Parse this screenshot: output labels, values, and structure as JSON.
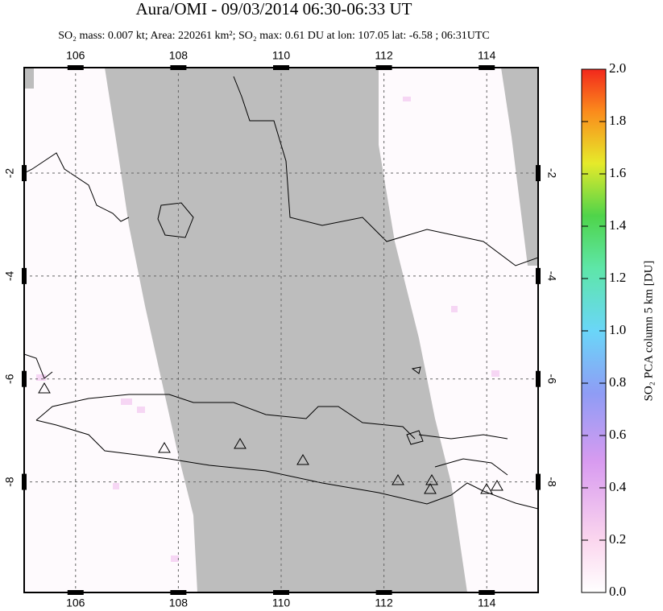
{
  "chart_data": {
    "type": "map",
    "title": "Aura/OMI - 09/03/2014 06:30-06:33 UT",
    "subtitle": "SO₂ mass: 0.007 kt; Area: 220261 km²; SO₂ max: 0.61 DU at lon: 107.05 lat: -6.58 ; 06:31UTC",
    "xlim": [
      105,
      115
    ],
    "ylim": [
      -10.15,
      0.05
    ],
    "xticks": [
      106,
      108,
      110,
      112,
      114
    ],
    "yticks": [
      -2,
      -4,
      -6,
      -8
    ],
    "grid": true,
    "colorbar": {
      "label": "SO₂ PCA column 5 km [DU]",
      "lim": [
        0,
        2
      ],
      "ticks": [
        {
          "value": 0,
          "label": "0.0"
        },
        0.2,
        0.4,
        0.6,
        0.8,
        {
          "value": 1,
          "label": "1.0"
        },
        1.2,
        1.4,
        1.6,
        1.8,
        {
          "value": 2,
          "label": "2.0"
        }
      ]
    }
  }
}
